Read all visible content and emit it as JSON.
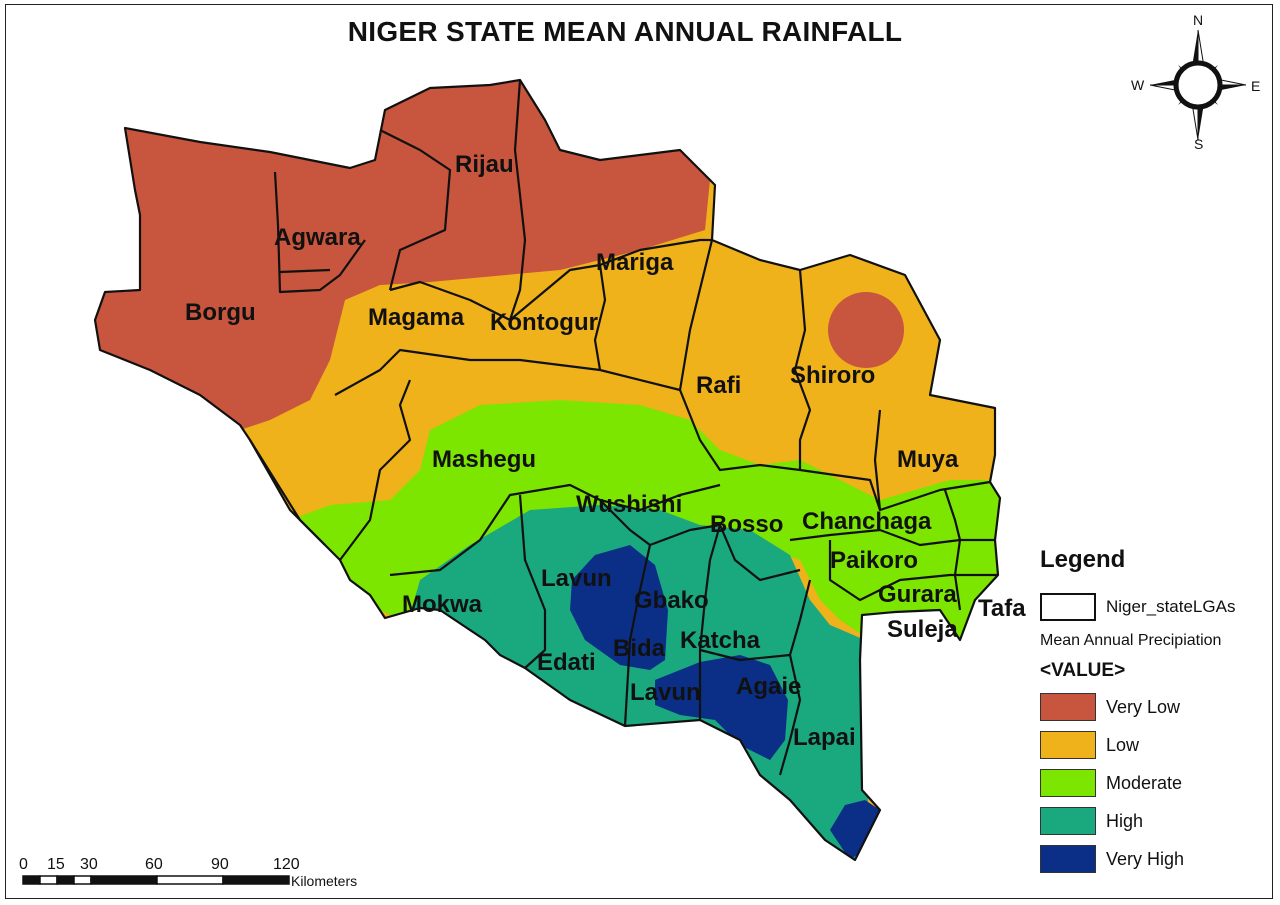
{
  "title": "NIGER STATE MEAN ANNUAL RAINFALL",
  "colors": {
    "very_low": "#c8553d",
    "low": "#f0b21b",
    "moderate": "#7de600",
    "high": "#1aa87f",
    "very_high": "#0b2f86",
    "boundary": "#111111"
  },
  "lgas": [
    "Rijau",
    "Agwara",
    "Mariga",
    "Borgu",
    "Magama",
    "Kontogur",
    "Rafi",
    "Shiroro",
    "Mashegu",
    "Muya",
    "Wushishi",
    "Bosso",
    "Chanchaga",
    "Paikoro",
    "Lavun",
    "Gbako",
    "Gurara",
    "Tafa",
    "Mokwa",
    "Suleja",
    "Katcha",
    "Bida",
    "Edati",
    "Lavun",
    "Agaie",
    "Lapai"
  ],
  "compass": {
    "n": "N",
    "s": "S",
    "e": "E",
    "w": "W"
  },
  "legend": {
    "title": "Legend",
    "boundary_label": "Niger_stateLGAs",
    "subtitle": "Mean Annual Precipiation",
    "value_header": "<VALUE>",
    "classes": [
      {
        "label": "Very Low",
        "color": "#c8553d"
      },
      {
        "label": "Low",
        "color": "#f0b21b"
      },
      {
        "label": "Moderate",
        "color": "#7de600"
      },
      {
        "label": "High",
        "color": "#1aa87f"
      },
      {
        "label": "Very High",
        "color": "#0b2f86"
      }
    ]
  },
  "scale": {
    "ticks": [
      "0",
      "15",
      "30",
      "60",
      "90",
      "120"
    ],
    "unit": "Kilometers"
  }
}
